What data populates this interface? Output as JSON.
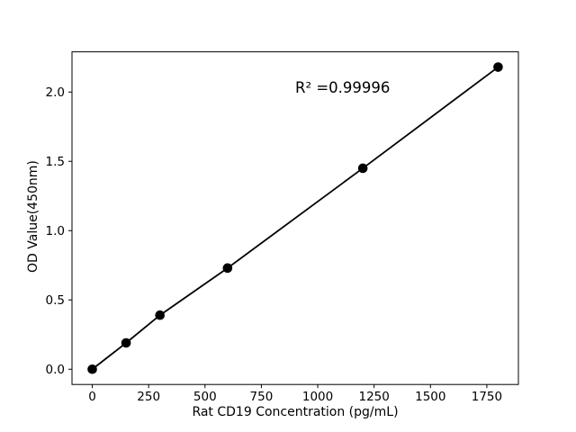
{
  "chart_data": {
    "type": "line",
    "x": [
      0,
      150,
      300,
      600,
      1200,
      1800
    ],
    "y": [
      0.0,
      0.19,
      0.39,
      0.73,
      1.45,
      2.18
    ],
    "title": "",
    "xlabel": "Rat CD19 Concentration (pg/mL)",
    "ylabel": "OD Value(450nm)",
    "annotation": "R² =0.99996",
    "xticks": [
      "0",
      "250",
      "500",
      "750",
      "1000",
      "1250",
      "1500",
      "1750"
    ],
    "yticks": [
      "0.0",
      "0.5",
      "1.0",
      "1.5",
      "2.0"
    ],
    "xtick_values": [
      0,
      250,
      500,
      750,
      1000,
      1250,
      1500,
      1750
    ],
    "ytick_values": [
      0.0,
      0.5,
      1.0,
      1.5,
      2.0
    ],
    "xlim": [
      -90,
      1890
    ],
    "ylim": [
      -0.11,
      2.29
    ],
    "grid": false,
    "legend": "none",
    "marker": "circle",
    "line_color": "#000000",
    "marker_color": "#000000",
    "frame_color": "#000000",
    "background": "#ffffff"
  }
}
